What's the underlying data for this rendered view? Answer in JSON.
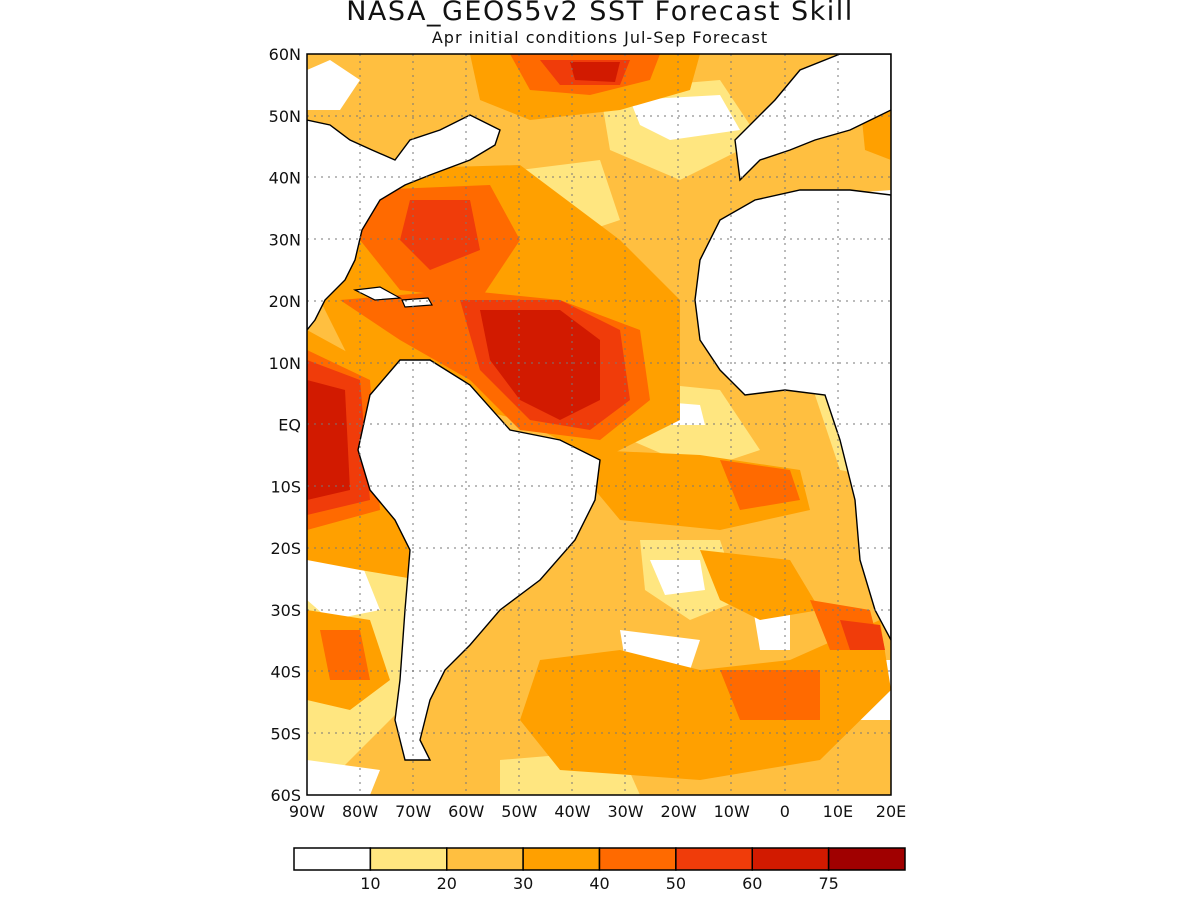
{
  "title": "NASA_GEOS5v2 SST Forecast Skill",
  "subtitle": "Apr initial conditions  Jul-Sep Forecast",
  "map": {
    "lon_range": [
      -90,
      20
    ],
    "lat_range": [
      -60,
      60
    ],
    "x_tick_labels": [
      "90W",
      "80W",
      "70W",
      "60W",
      "50W",
      "40W",
      "30W",
      "20W",
      "10W",
      "0",
      "10E",
      "20E"
    ],
    "y_tick_labels": [
      "60N",
      "50N",
      "40N",
      "30N",
      "20N",
      "10N",
      "EQ",
      "10S",
      "20S",
      "30S",
      "40S",
      "50S",
      "60S"
    ],
    "grid": "dotted",
    "variable": "SST forecast skill"
  },
  "colorbar": {
    "labels": [
      "10",
      "20",
      "30",
      "40",
      "50",
      "60",
      "75"
    ],
    "colors": [
      "#ffffff",
      "#ffe680",
      "#ffbf40",
      "#ffa000",
      "#ff6a00",
      "#f03c0a",
      "#d21a00",
      "#a00000"
    ]
  }
}
